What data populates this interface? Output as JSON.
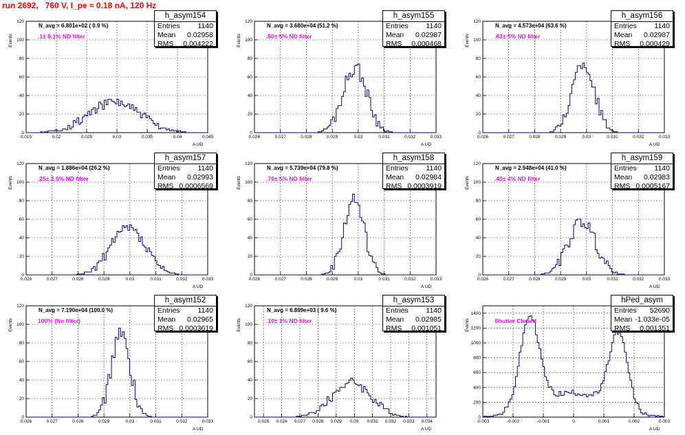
{
  "page_title": "run 2692,   760 V, I_pe ≈ 0.18 nA, 120 Hz",
  "stat_labels": {
    "entries": "Entries",
    "mean": "Mean",
    "rms": "RMS"
  },
  "colors": {
    "title": "#ff0000",
    "histogram": "#000080",
    "annotation": "#ff00ff"
  },
  "chart_data": [
    {
      "type": "histogram",
      "name": "h_asym154",
      "navg": "N_avg = 6.801e+02 ( 0.9 %)",
      "filter": ".1± 0.1% ND filter",
      "stats": {
        "entries": "1140",
        "mean": "0.02958",
        "rms": "0.004222"
      },
      "xlabel": "A_UD",
      "ylabel": "Events",
      "xlim": [
        0.015,
        0.045
      ],
      "ylim": [
        0,
        120
      ],
      "xticks": [
        "0.015",
        "0.02",
        "0.025",
        "0.03",
        "0.035",
        "0.04",
        "0.045"
      ],
      "yticks": [
        "0",
        "20",
        "40",
        "60",
        "80",
        "100",
        "120"
      ],
      "peaks": [
        {
          "mu": 0.0296,
          "sigma": 0.0042,
          "height": 33
        }
      ],
      "noise": 5,
      "seed": 154
    },
    {
      "type": "histogram",
      "name": "h_asym155",
      "navg": "N_avg = 3.680e+04 (51.2 %)",
      "filter": ".50± 5% ND filter",
      "stats": {
        "entries": "1140",
        "mean": "0.02987",
        "rms": "0.000468"
      },
      "xlabel": "A_UD",
      "ylabel": "Events",
      "xlim": [
        0.026,
        0.033
      ],
      "ylim": [
        0,
        120
      ],
      "xticks": [
        "0.026",
        "0.027",
        "0.028",
        "0.029",
        "0.03",
        "0.031",
        "0.032",
        "0.033"
      ],
      "yticks": [
        "0",
        "20",
        "40",
        "60",
        "80",
        "100",
        "120"
      ],
      "peaks": [
        {
          "mu": 0.02987,
          "sigma": 0.00047,
          "height": 70
        }
      ],
      "noise": 8,
      "seed": 155
    },
    {
      "type": "histogram",
      "name": "h_asym156",
      "navg": "N_avg = 4.573e+04 (63.6 %)",
      "filter": ".63± 5% ND filter",
      "stats": {
        "entries": "1140",
        "mean": "0.02987",
        "rms": "0.000429"
      },
      "xlabel": "A_UD",
      "ylabel": "Events",
      "xlim": [
        0.026,
        0.033
      ],
      "ylim": [
        0,
        120
      ],
      "xticks": [
        "0.026",
        "0.027",
        "0.028",
        "0.029",
        "0.03",
        "0.031",
        "0.032",
        "0.033"
      ],
      "yticks": [
        "0",
        "20",
        "40",
        "60",
        "80",
        "100",
        "120"
      ],
      "peaks": [
        {
          "mu": 0.02987,
          "sigma": 0.00043,
          "height": 75
        }
      ],
      "noise": 7,
      "seed": 156
    },
    {
      "type": "histogram",
      "name": "h_asym157",
      "navg": "N_avg = 1.886e+04 (26.2 %)",
      "filter": ".25± 2.5% ND filter",
      "stats": {
        "entries": "1140",
        "mean": "0.02993",
        "rms": "0.0006569"
      },
      "xlabel": "A_UD",
      "ylabel": "Events",
      "xlim": [
        0.026,
        0.033
      ],
      "ylim": [
        0,
        120
      ],
      "xticks": [
        "0.026",
        "0.027",
        "0.028",
        "0.029",
        "0.03",
        "0.031",
        "0.032",
        "0.033"
      ],
      "yticks": [
        "0",
        "20",
        "40",
        "60",
        "80",
        "100",
        "120"
      ],
      "peaks": [
        {
          "mu": 0.02993,
          "sigma": 0.00066,
          "height": 50
        }
      ],
      "noise": 6,
      "seed": 157
    },
    {
      "type": "histogram",
      "name": "h_asym158",
      "navg": "N_avg = 5.739e+04 (79.8 %)",
      "filter": ".79± 5% ND filter",
      "stats": {
        "entries": "1140",
        "mean": "0.02984",
        "rms": "0.0003919"
      },
      "xlabel": "A_UD",
      "ylabel": "Events",
      "xlim": [
        0.026,
        0.033
      ],
      "ylim": [
        0,
        120
      ],
      "xticks": [
        "0.026",
        "0.027",
        "0.028",
        "0.029",
        "0.03",
        "0.031",
        "0.032",
        "0.033"
      ],
      "yticks": [
        "0",
        "20",
        "40",
        "60",
        "80",
        "100",
        "120"
      ],
      "peaks": [
        {
          "mu": 0.02984,
          "sigma": 0.00039,
          "height": 82
        }
      ],
      "noise": 8,
      "seed": 158
    },
    {
      "type": "histogram",
      "name": "h_asym159",
      "navg": "N_avg = 2.948e+04 (41.0 %)",
      "filter": ".40± 4% ND filter",
      "stats": {
        "entries": "1140",
        "mean": "0.02983",
        "rms": "0.0005167"
      },
      "xlabel": "A_UD",
      "ylabel": "Events",
      "xlim": [
        0.026,
        0.033
      ],
      "ylim": [
        0,
        120
      ],
      "xticks": [
        "0.026",
        "0.027",
        "0.028",
        "0.029",
        "0.03",
        "0.031",
        "0.032",
        "0.033"
      ],
      "yticks": [
        "0",
        "20",
        "40",
        "60",
        "80",
        "100",
        "120"
      ],
      "peaks": [
        {
          "mu": 0.02983,
          "sigma": 0.00052,
          "height": 58
        }
      ],
      "noise": 7,
      "seed": 159
    },
    {
      "type": "histogram",
      "name": "h_asym152",
      "navg": "N_avg = 7.190e+04 (100.0 %)",
      "filter": "100% (No filter)",
      "stats": {
        "entries": "1140",
        "mean": "0.02965",
        "rms": "0.0003619"
      },
      "xlabel": "A_UD",
      "ylabel": "Events",
      "xlim": [
        0.026,
        0.033
      ],
      "ylim": [
        0,
        120
      ],
      "xticks": [
        "0.026",
        "0.027",
        "0.028",
        "0.029",
        "0.03",
        "0.031",
        "0.032",
        "0.033"
      ],
      "yticks": [
        "0",
        "20",
        "40",
        "60",
        "80",
        "100",
        "120"
      ],
      "peaks": [
        {
          "mu": 0.02965,
          "sigma": 0.00036,
          "height": 90
        }
      ],
      "noise": 8,
      "seed": 152
    },
    {
      "type": "histogram",
      "name": "h_asym153",
      "navg": "N_avg = 6.899e+03 ( 9.6 %)",
      "filter": ".10± 1% ND filter",
      "stats": {
        "entries": "1140",
        "mean": "0.02985",
        "rms": "0.001051"
      },
      "xlabel": "A_UD",
      "ylabel": "Events",
      "xlim": [
        0.0245,
        0.0345
      ],
      "ylim": [
        0,
        120
      ],
      "xticks": [
        "0.025",
        "0.026",
        "0.027",
        "0.028",
        "0.029",
        "0.03",
        "0.031",
        "0.032",
        "0.033",
        "0.034"
      ],
      "yticks": [
        "0",
        "20",
        "40",
        "60",
        "80",
        "100",
        "120"
      ],
      "peaks": [
        {
          "mu": 0.02985,
          "sigma": 0.00105,
          "height": 38
        }
      ],
      "noise": 5,
      "seed": 153
    },
    {
      "type": "histogram",
      "name": "hPed_asym",
      "navg": "",
      "filter": "Shutter Closed",
      "stats": {
        "entries": "52690",
        "mean": "-1.033e-05",
        "rms": "0.001351"
      },
      "xlabel": "A_UD",
      "ylabel": "Events",
      "xlim": [
        -0.003,
        0.003
      ],
      "ylim": [
        0,
        1500
      ],
      "xticks": [
        "-0.003",
        "-0.002",
        "-0.001",
        "0",
        "0.001",
        "0.002",
        "0.003"
      ],
      "yticks": [
        "0",
        "200",
        "400",
        "600",
        "800",
        "1000",
        "1200",
        "1400"
      ],
      "peaks": [
        {
          "mu": -0.00145,
          "sigma": 0.00032,
          "height": 1230
        },
        {
          "mu": 0.00148,
          "sigma": 0.0003,
          "height": 1020
        },
        {
          "mu": 0.0,
          "sigma": 0.0011,
          "height": 330
        }
      ],
      "noise": 40,
      "seed": 160
    }
  ]
}
